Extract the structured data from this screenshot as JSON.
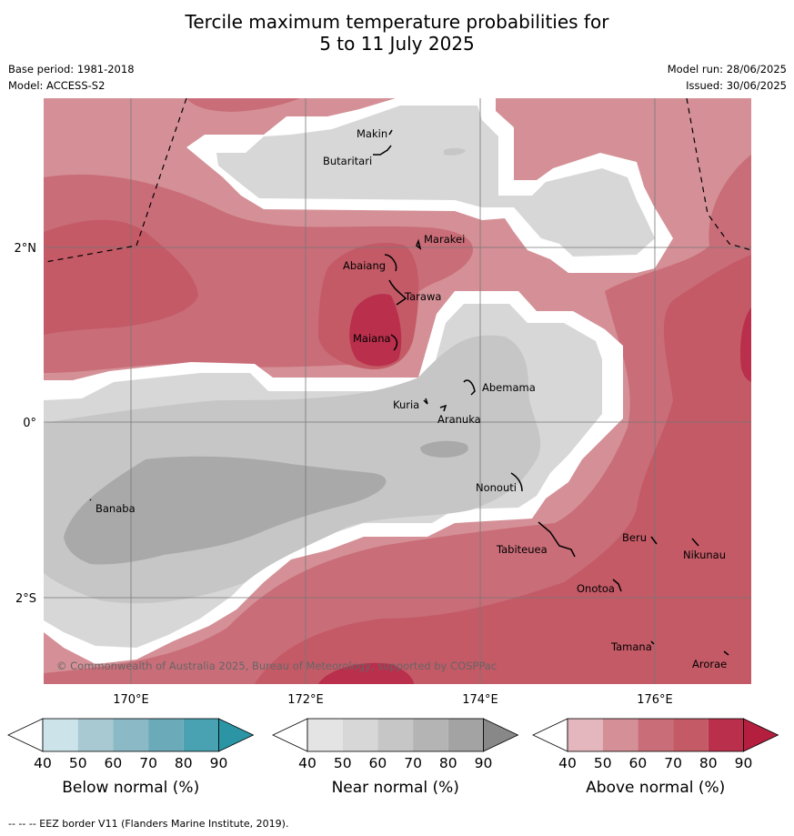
{
  "title_line1": "Tercile maximum temperature probabilities for",
  "title_line2": "5 to 11 July 2025",
  "meta": {
    "base_period": "Base period: 1981-2018",
    "model": "Model: ACCESS-S2",
    "model_run": "Model run: 28/06/2025",
    "issued": "Issued: 30/06/2025"
  },
  "map": {
    "lon_labels": [
      "170°E",
      "172°E",
      "174°E",
      "176°E"
    ],
    "lat_labels": [
      "2°N",
      "0°",
      "2°S"
    ],
    "copyright": "© Commonwealth of Australia 2025, Bureau of Meteorology, supported by COSPPac",
    "places": [
      "Makin",
      "Butaritari",
      "Marakei",
      "Abaiang",
      "Tarawa",
      "Maiana",
      "Abemama",
      "Kuria",
      "Aranuka",
      "Nonouti",
      "Banaba",
      "Beru",
      "Nikunau",
      "Tabiteuea",
      "Onotoa",
      "Tamana",
      "Arorae"
    ]
  },
  "colorbars": [
    {
      "label": "Below normal (%)",
      "ticks": [
        "40",
        "50",
        "60",
        "70",
        "80",
        "90"
      ],
      "colors": [
        "#cde3ea",
        "#a8c9d2",
        "#8cb9c6",
        "#6aaab9",
        "#48a2b1",
        "#2b95a6"
      ]
    },
    {
      "label": "Near normal (%)",
      "ticks": [
        "40",
        "50",
        "60",
        "70",
        "80",
        "90"
      ],
      "colors": [
        "#e4e4e4",
        "#d7d7d7",
        "#c6c6c6",
        "#b4b4b4",
        "#a3a3a3",
        "#888888"
      ]
    },
    {
      "label": "Above normal (%)",
      "ticks": [
        "40",
        "50",
        "60",
        "70",
        "80",
        "90"
      ],
      "colors": [
        "#e3b7bd",
        "#d49096",
        "#c96d78",
        "#c35a66",
        "#b92f4c",
        "#b41f3f"
      ]
    }
  ],
  "footnote": "--  --  -- EEZ border V11 (Flanders Marine Institute, 2019)."
}
